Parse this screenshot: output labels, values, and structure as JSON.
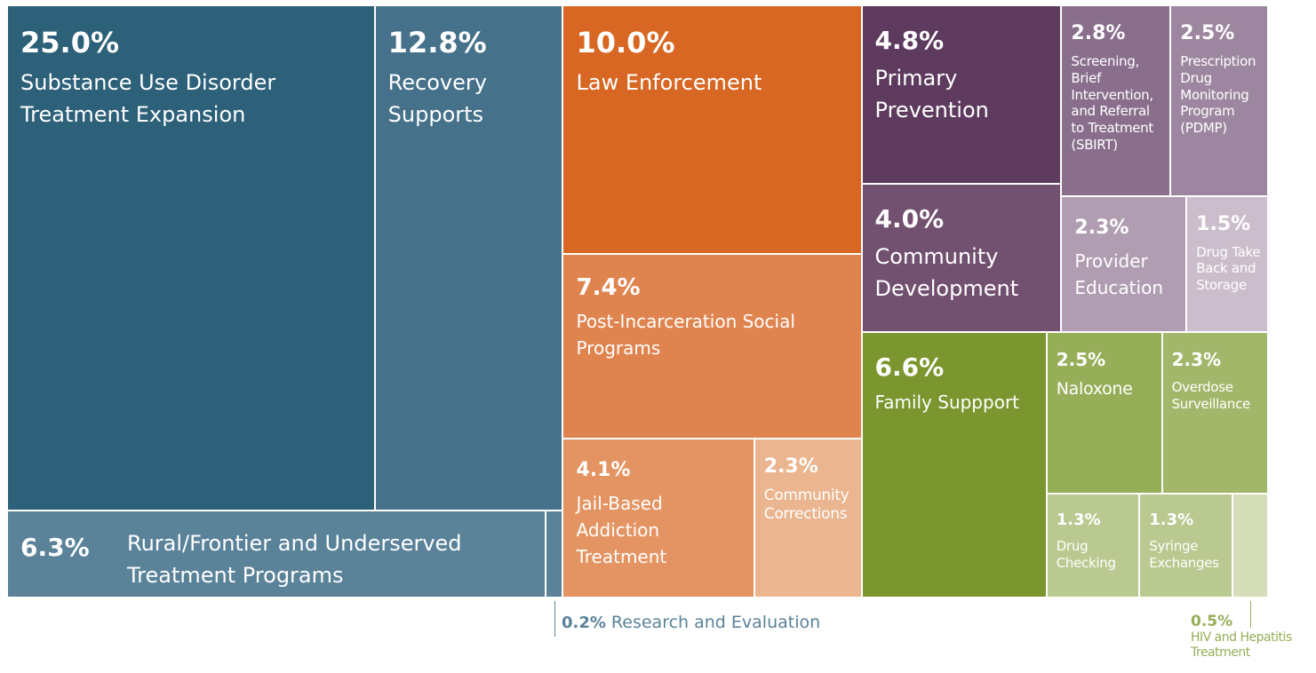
{
  "chart_data": {
    "type": "treemap",
    "categories": [
      "Substance Use Disorder Treatment Expansion",
      "Recovery Supports",
      "Rural/Frontier and Underserved Treatment Programs",
      "Research and Evaluation",
      "Law Enforcement",
      "Post-Incarceration Social Programs",
      "Jail-Based Addiction Treatment",
      "Community Corrections",
      "Primary Prevention",
      "Screening, Brief Intervention, and Referral to Treatment (SBIRT)",
      "Prescription Drug Monitoring Program (PDMP)",
      "Community Development",
      "Provider Education",
      "Drug Take Back and Storage",
      "Family Suppport",
      "Naloxone",
      "Overdose Surveillance",
      "Drug Checking",
      "Syringe Exchanges",
      "HIV and Hepatitis Treatment"
    ],
    "values": [
      25.0,
      12.8,
      6.3,
      0.2,
      10.0,
      7.4,
      4.1,
      2.3,
      4.8,
      2.8,
      2.5,
      4.0,
      2.3,
      1.5,
      6.6,
      2.5,
      2.3,
      1.3,
      1.3,
      0.5
    ],
    "value_labels": [
      "25.0%",
      "12.8%",
      "6.3%",
      "0.2%",
      "10.0%",
      "7.4%",
      "4.1%",
      "2.3%",
      "4.8%",
      "2.8%",
      "2.5%",
      "4.0%",
      "2.3%",
      "1.5%",
      "6.6%",
      "2.5%",
      "2.3%",
      "1.3%",
      "1.3%",
      "0.5%"
    ],
    "colors": [
      "#2d6079",
      "#46718a",
      "#5a8299",
      "#5a8299",
      "#d76722",
      "#e0844f",
      "#e49462",
      "#eab58f",
      "#5d3a5e",
      "#8a6f8d",
      "#9d869f",
      "#72506f",
      "#b09db1",
      "#cbbdcb",
      "#7b962e",
      "#97ae58",
      "#a3b76a",
      "#bac990",
      "#bac990",
      "#d6deb9"
    ]
  }
}
